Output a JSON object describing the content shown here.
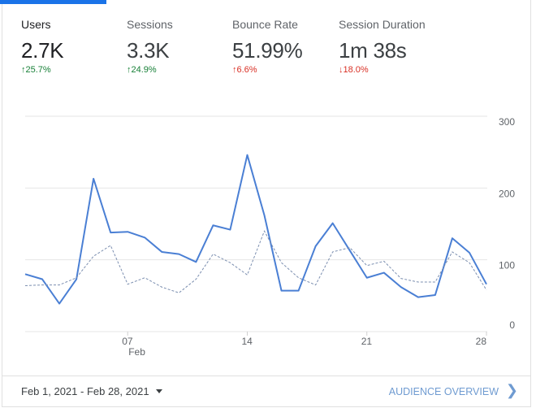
{
  "colors": {
    "accent": "#1a73e8",
    "line": "#4a7fd4",
    "comparison": "#7c8fb0",
    "positive": "#188038",
    "negative": "#d93025",
    "link": "#6f9bd1"
  },
  "metrics": [
    {
      "label": "Users",
      "value": "2.7K",
      "delta": "25.7%",
      "direction": "up",
      "sentiment": "good",
      "selected": true
    },
    {
      "label": "Sessions",
      "value": "3.3K",
      "delta": "24.9%",
      "direction": "up",
      "sentiment": "good"
    },
    {
      "label": "Bounce Rate",
      "value": "51.99%",
      "delta": "6.6%",
      "direction": "up",
      "sentiment": "bad"
    },
    {
      "label": "Session Duration",
      "value": "1m 38s",
      "delta": "18.0%",
      "direction": "down",
      "sentiment": "bad"
    }
  ],
  "chart_data": {
    "type": "line",
    "x": [
      1,
      2,
      3,
      4,
      5,
      6,
      7,
      8,
      9,
      10,
      11,
      12,
      13,
      14,
      15,
      16,
      17,
      18,
      19,
      20,
      21,
      22,
      23,
      24,
      25,
      26,
      27,
      28
    ],
    "x_ticks": [
      {
        "day": 7,
        "label": "07",
        "sublabel": "Feb"
      },
      {
        "day": 14,
        "label": "14"
      },
      {
        "day": 21,
        "label": "21"
      },
      {
        "day": 28,
        "label": "28"
      }
    ],
    "y_ticks": [
      "0",
      "100",
      "200",
      "300"
    ],
    "ylim": [
      0,
      300
    ],
    "grid": true,
    "y_axis_side": "right",
    "series": [
      {
        "style": "solid",
        "values": [
          80,
          73,
          39,
          73,
          213,
          138,
          139,
          131,
          111,
          108,
          97,
          148,
          142,
          246,
          162,
          57,
          57,
          119,
          151,
          113,
          75,
          82,
          62,
          48,
          51,
          130,
          110,
          66
        ]
      },
      {
        "style": "dashed",
        "values": [
          64,
          65,
          65,
          75,
          105,
          120,
          66,
          75,
          62,
          54,
          73,
          108,
          96,
          79,
          140,
          96,
          75,
          65,
          111,
          117,
          92,
          98,
          74,
          69,
          69,
          111,
          96,
          58
        ]
      }
    ]
  },
  "footer": {
    "date_range": "Feb 1, 2021 - Feb 28, 2021",
    "link": "AUDIENCE OVERVIEW"
  }
}
